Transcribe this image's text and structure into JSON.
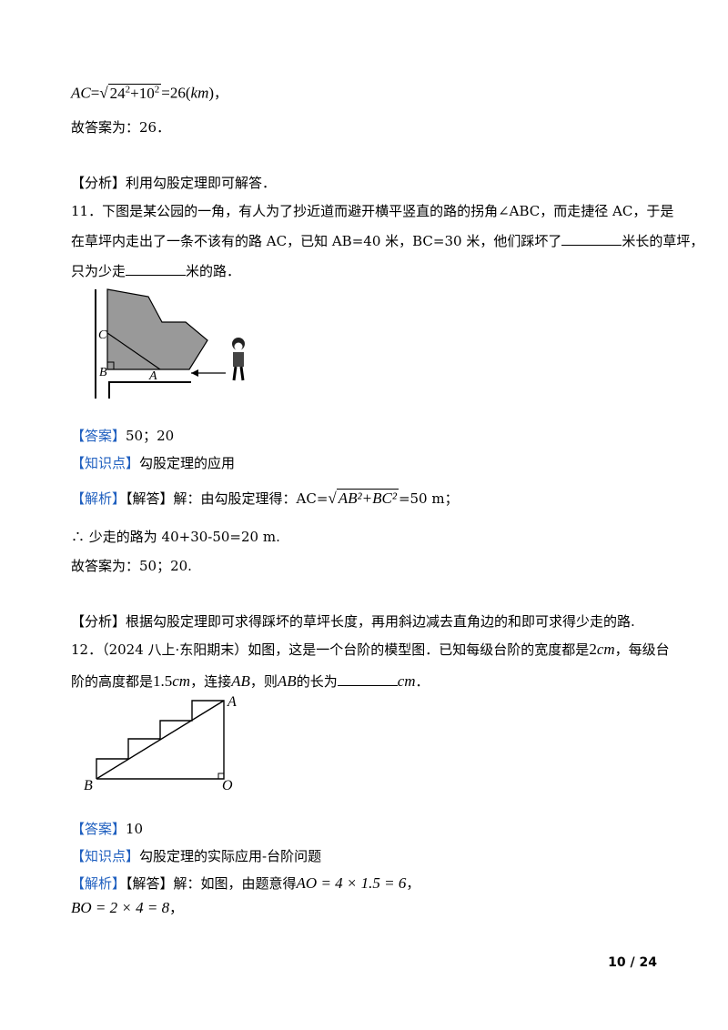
{
  "prev": {
    "formula_lhs": "AC",
    "formula_eq": "=",
    "formula_a": "24",
    "formula_b": "10",
    "formula_exp": "2",
    "formula_result": "26",
    "formula_unit": "km",
    "formula_tail": "，",
    "answer_line": "故答案为：26．",
    "analysis_tag": "【分析】",
    "analysis_text": "利用勾股定理即可解答．"
  },
  "q11": {
    "line1": "11．下图是某公园的一角，有人为了抄近道而避开横平竖直的路的拐角∠ABC，而走捷径 AC，于是",
    "line2a": "在草坪内走出了一条不该有的路 AC，已知 AB=40 米，BC=30 米，他们踩坏了",
    "line2b": "米长的草坪，",
    "line3a": "只为少走",
    "line3b": "米的路．",
    "fig_labels": {
      "C": "C",
      "B": "B",
      "A": "A"
    },
    "answer_tag": "【答案】",
    "answer": "50；20",
    "kp_tag": "【知识点】",
    "kp": "勾股定理的应用",
    "sol_tag": "【解析】",
    "sol_tag2": "【解答】",
    "sol_text": "解：由勾股定理得：AC=",
    "sol_rad": "AB²+BC²",
    "sol_tail": "=50 m；",
    "therefore": "∴  少走的路为 40+30-50=20 m.",
    "final": "故答案为：50；20.",
    "analysis_tag": "【分析】",
    "analysis_text": "根据勾股定理即可求得踩坏的草坪长度，再用斜边减去直角边的和即可求得少走的路."
  },
  "q12": {
    "line1a": "12．（2024 八上·东阳期末）如图，这是一个台阶的模型图．已知每级台阶的宽度都是",
    "width_val": "2",
    "unit": "cm",
    "line1b": "，每级台",
    "line2a": "阶的高度都是",
    "height_val": "1.5",
    "line2b": "，连接",
    "ab": "AB",
    "line2c": "，则",
    "line2d": "的长为",
    "line2e": "．",
    "fig_labels": {
      "A": "A",
      "B": "B",
      "O": "O"
    },
    "answer_tag": "【答案】",
    "answer": "10",
    "kp_tag": "【知识点】",
    "kp": "勾股定理的实际应用-台阶问题",
    "sol_tag": "【解析】",
    "sol_tag2": "【解答】",
    "sol_text": "解：如图，由题意得",
    "ao_expr": "AO = 4 × 1.5 = 6",
    "ao_tail": "，",
    "bo_expr": "BO = 2 × 4 = 8",
    "bo_tail": "，"
  },
  "footer": {
    "page": "10 / 24"
  }
}
